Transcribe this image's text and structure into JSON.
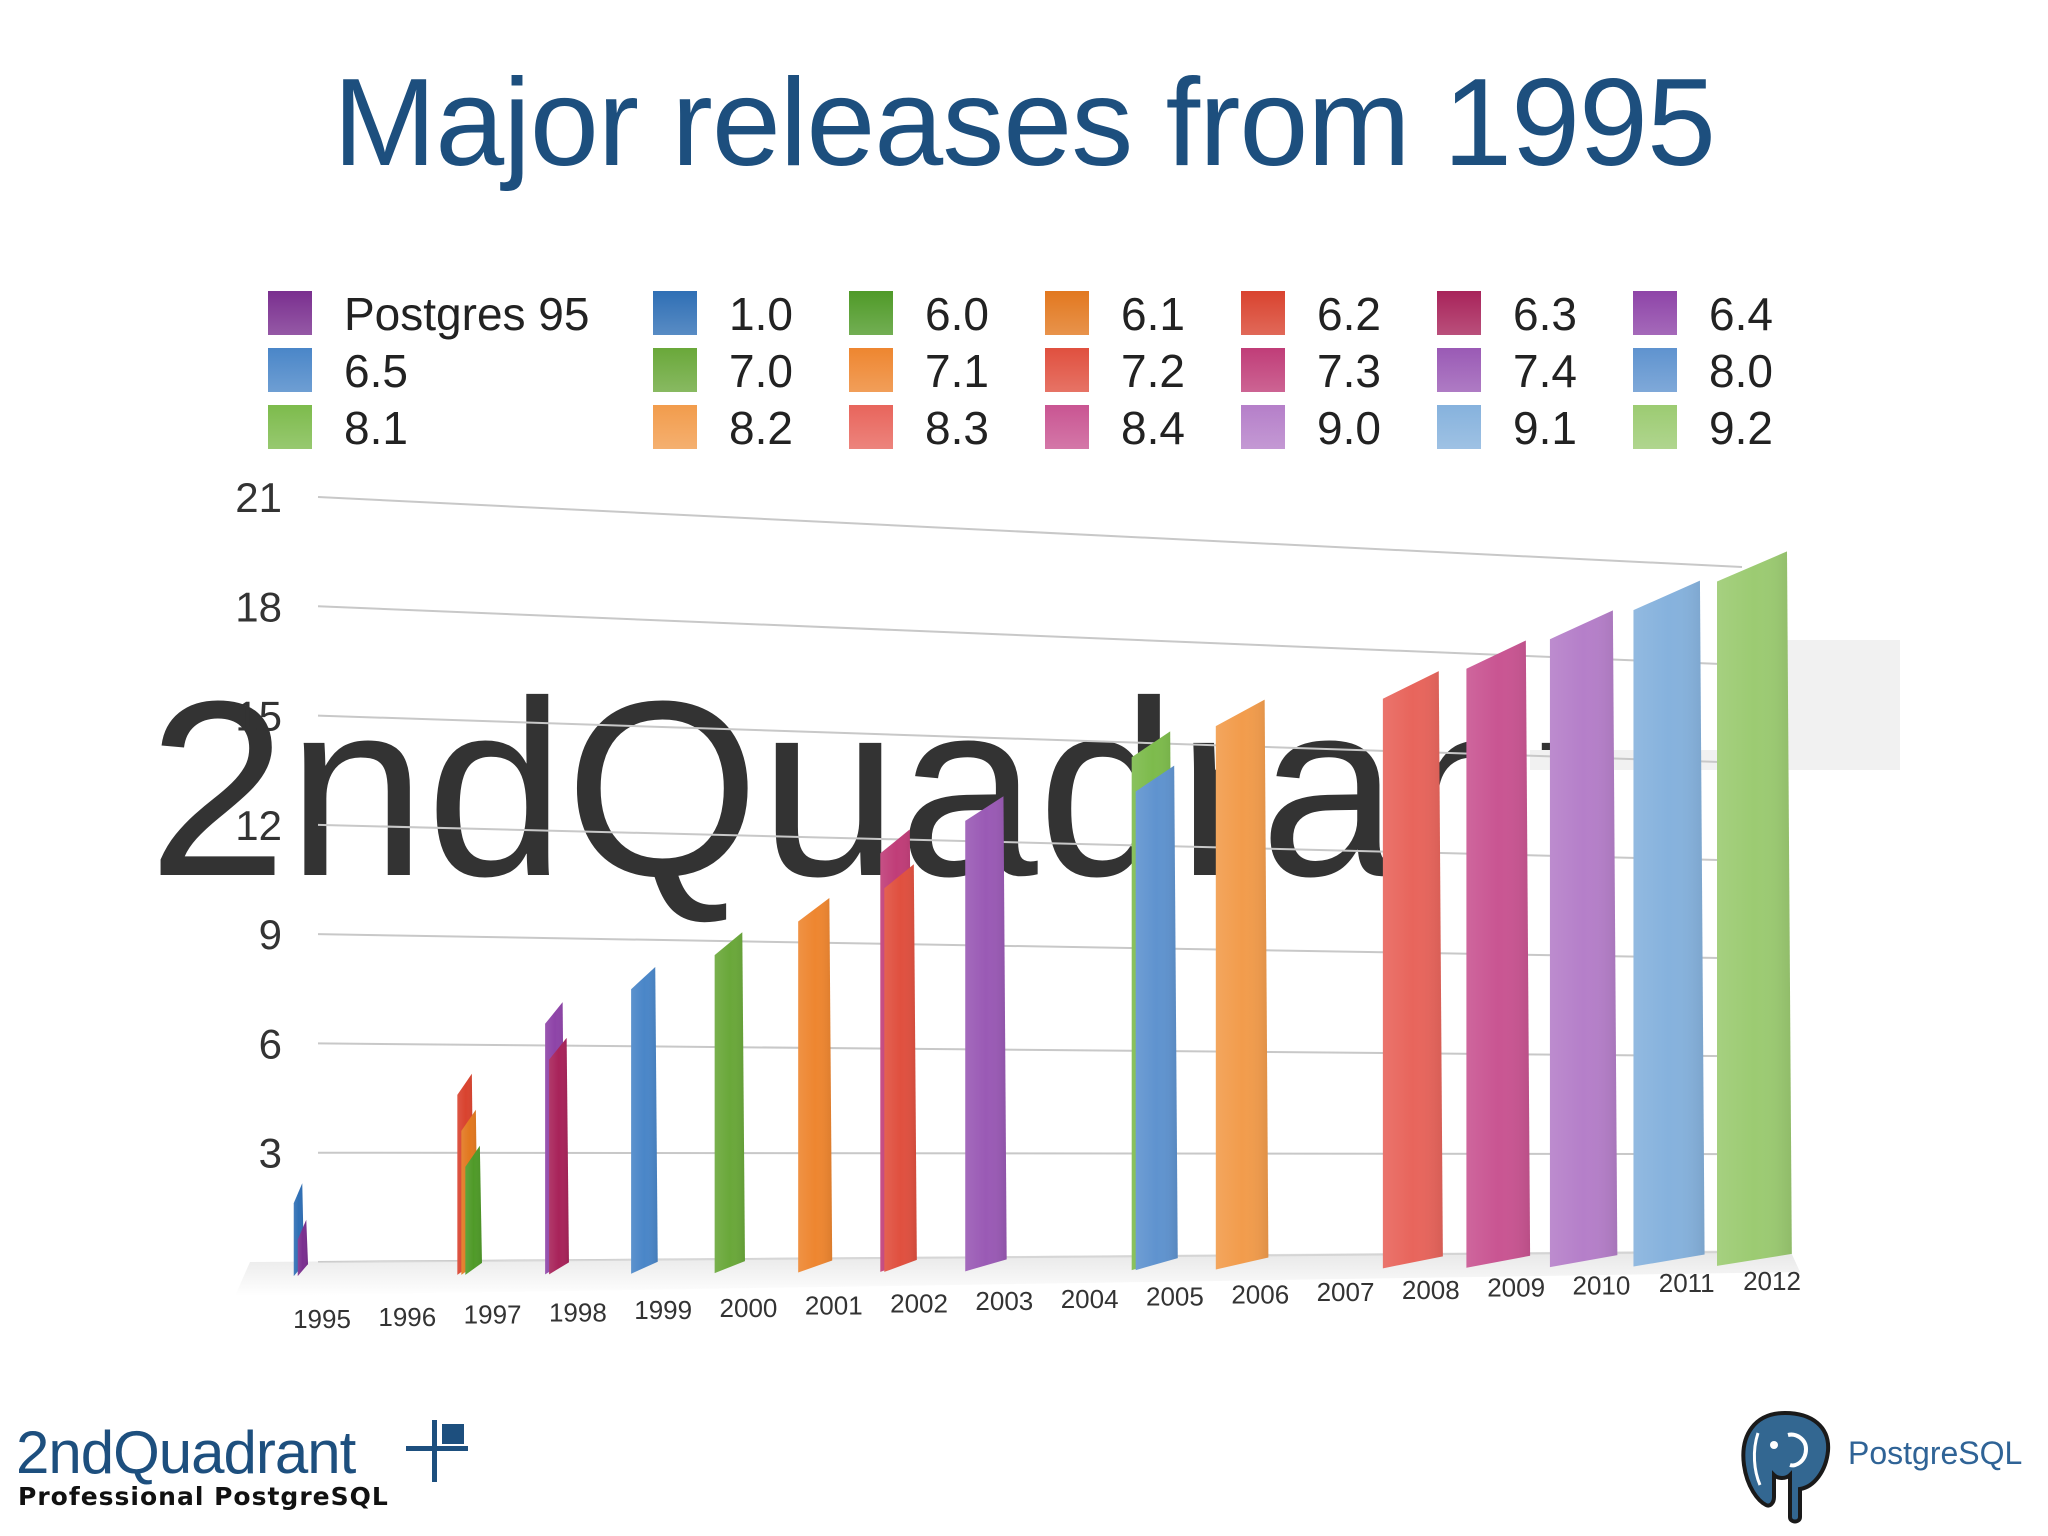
{
  "slide": {
    "title": "Major releases from 1995",
    "watermark": "2ndQuadrant",
    "brand_name": "2ndQuadrant",
    "brand_tagline": "Professional PostgreSQL",
    "postgres_logo_text": "PostgreSQL"
  },
  "chart_data": {
    "type": "bar",
    "title": "Major releases from 1995",
    "xlabel": "",
    "ylabel": "",
    "ylim": [
      0,
      21
    ],
    "yticks": [
      3,
      6,
      9,
      12,
      15,
      18,
      21
    ],
    "grid": true,
    "legend_position": "top",
    "categories": [
      "1995",
      "1996",
      "1997",
      "1998",
      "1999",
      "2000",
      "2001",
      "2002",
      "2003",
      "2004",
      "2005",
      "2006",
      "2007",
      "2008",
      "2009",
      "2010",
      "2011",
      "2012"
    ],
    "series": [
      {
        "name": "Postgres 95",
        "color": "#7a2f8f",
        "points": [
          {
            "x": "1995",
            "y": 1
          }
        ]
      },
      {
        "name": "1.0",
        "color": "#2f6fb5",
        "points": [
          {
            "x": "1995",
            "y": 2
          }
        ]
      },
      {
        "name": "6.0",
        "color": "#4f9a28",
        "points": [
          {
            "x": "1997",
            "y": 3
          }
        ]
      },
      {
        "name": "6.1",
        "color": "#e2781f",
        "points": [
          {
            "x": "1997",
            "y": 4
          }
        ]
      },
      {
        "name": "6.2",
        "color": "#d9432f",
        "points": [
          {
            "x": "1997",
            "y": 5
          }
        ]
      },
      {
        "name": "6.3",
        "color": "#a8235a",
        "points": [
          {
            "x": "1998",
            "y": 6
          }
        ]
      },
      {
        "name": "6.4",
        "color": "#8e44a8",
        "points": [
          {
            "x": "1998",
            "y": 7
          }
        ]
      },
      {
        "name": "6.5",
        "color": "#4a86c8",
        "points": [
          {
            "x": "1999",
            "y": 8
          }
        ]
      },
      {
        "name": "7.0",
        "color": "#6aa83a",
        "points": [
          {
            "x": "2000",
            "y": 9
          }
        ]
      },
      {
        "name": "7.1",
        "color": "#ee8630",
        "points": [
          {
            "x": "2001",
            "y": 10
          }
        ]
      },
      {
        "name": "7.2",
        "color": "#e0503f",
        "points": [
          {
            "x": "2002",
            "y": 11
          }
        ]
      },
      {
        "name": "7.3",
        "color": "#c03d78",
        "points": [
          {
            "x": "2002",
            "y": 12
          }
        ]
      },
      {
        "name": "7.4",
        "color": "#9a5ab5",
        "points": [
          {
            "x": "2003",
            "y": 13
          }
        ]
      },
      {
        "name": "8.0",
        "color": "#5f93cf",
        "points": [
          {
            "x": "2005",
            "y": 14
          }
        ]
      },
      {
        "name": "8.1",
        "color": "#7dbb4c",
        "points": [
          {
            "x": "2005",
            "y": 15
          }
        ]
      },
      {
        "name": "8.2",
        "color": "#f29c4c",
        "points": [
          {
            "x": "2006",
            "y": 16
          }
        ]
      },
      {
        "name": "8.3",
        "color": "#e8655c",
        "points": [
          {
            "x": "2008",
            "y": 17
          }
        ]
      },
      {
        "name": "8.4",
        "color": "#c95592",
        "points": [
          {
            "x": "2009",
            "y": 18
          }
        ]
      },
      {
        "name": "9.0",
        "color": "#b57fc9",
        "points": [
          {
            "x": "2010",
            "y": 19
          }
        ]
      },
      {
        "name": "9.1",
        "color": "#86b2dd",
        "points": [
          {
            "x": "2011",
            "y": 20
          }
        ]
      },
      {
        "name": "9.2",
        "color": "#9ccb72",
        "points": [
          {
            "x": "2012",
            "y": 21
          }
        ]
      }
    ]
  }
}
